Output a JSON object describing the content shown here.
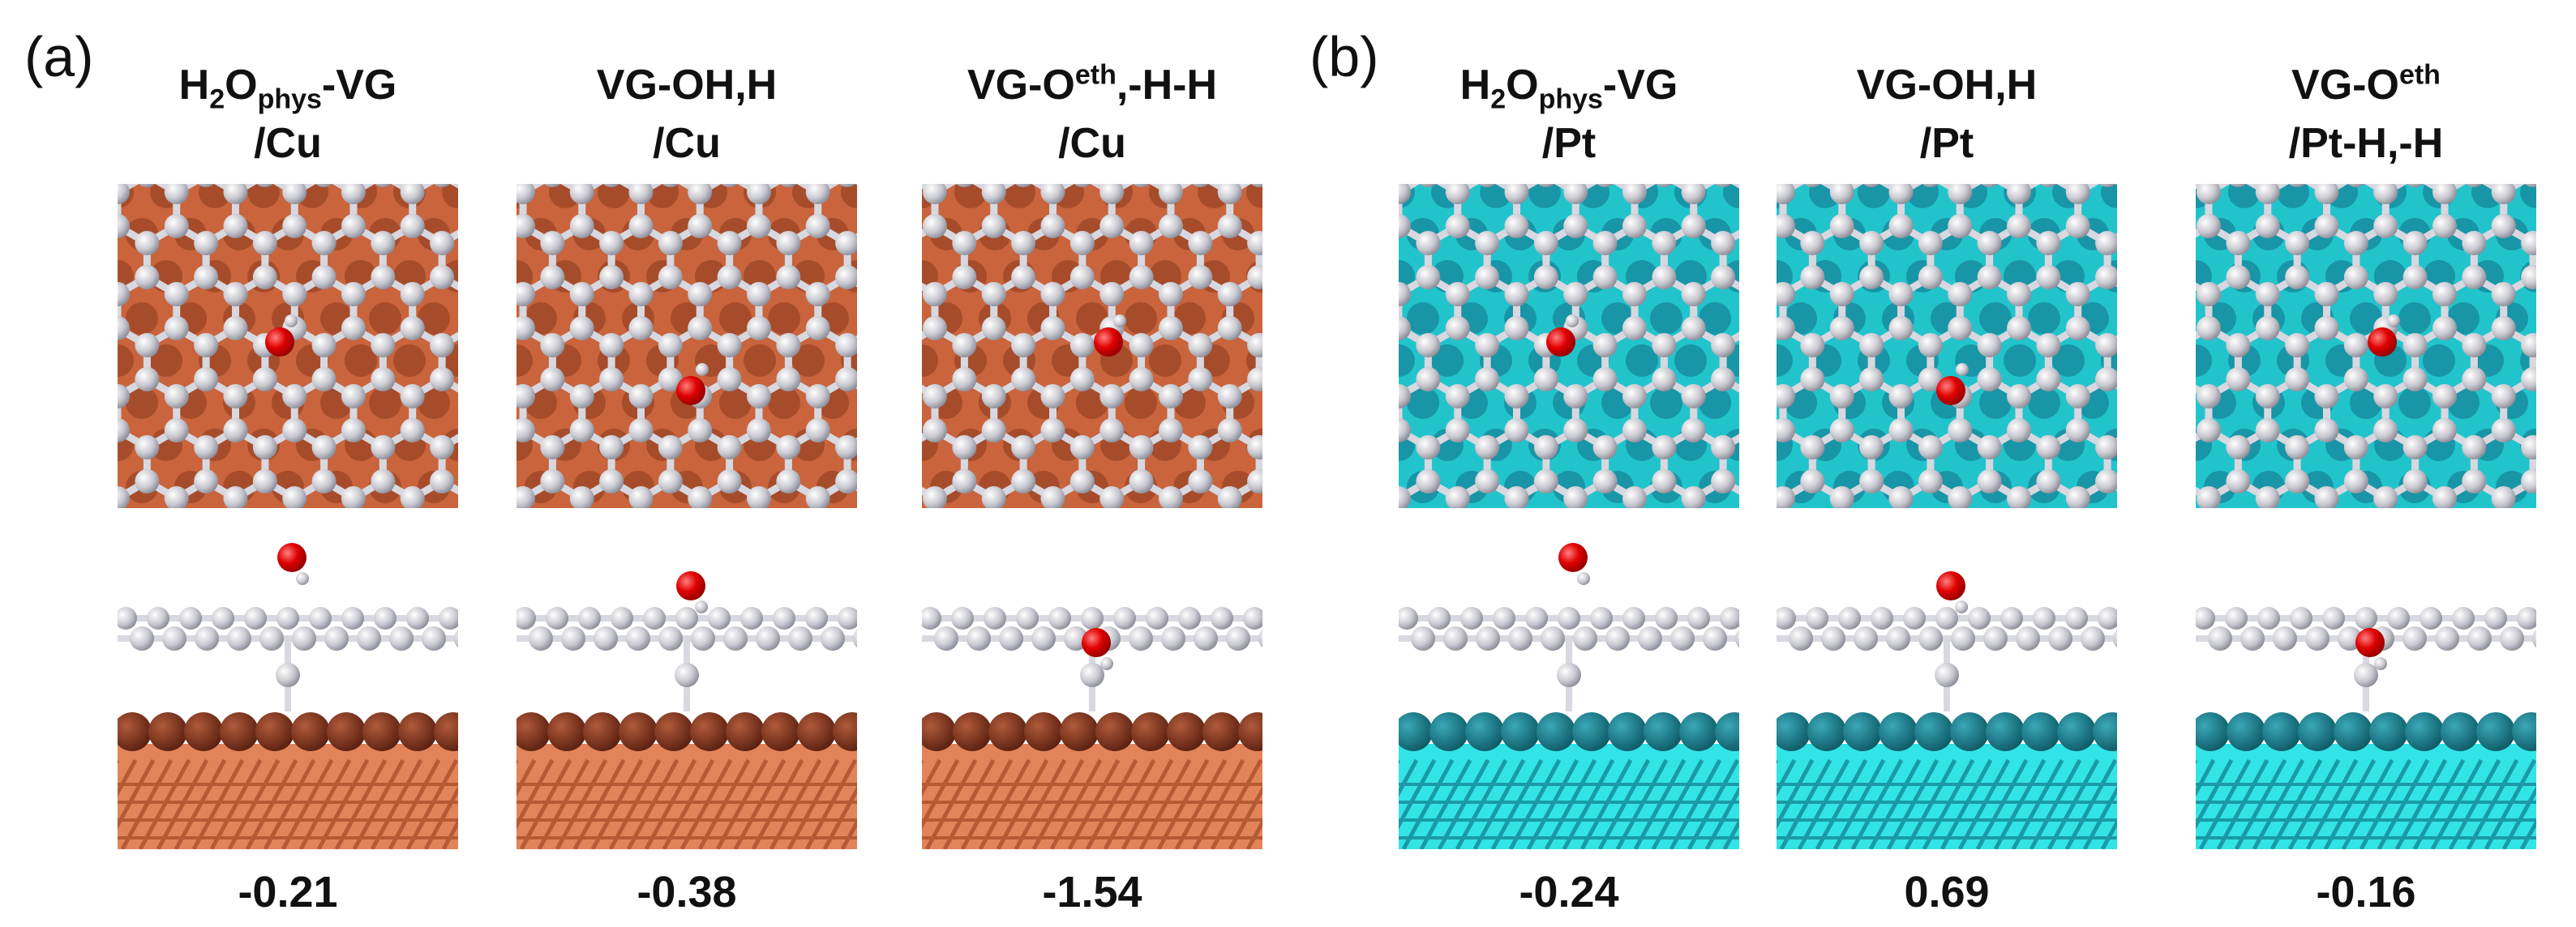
{
  "panels": [
    {
      "label": "(a)",
      "columns": [
        {
          "title_lines": [
            [
              {
                "text": "H"
              },
              {
                "text": "2",
                "sub": true
              },
              {
                "text": "O"
              },
              {
                "text": "phys",
                "sub": true
              },
              {
                "text": "-VG"
              }
            ],
            [
              {
                "text": "/Cu"
              }
            ]
          ],
          "energy": -0.21
        },
        {
          "title_lines": [
            [
              {
                "text": "VG-OH,H"
              }
            ],
            [
              {
                "text": "/Cu"
              }
            ]
          ],
          "energy": -0.38
        },
        {
          "title_lines": [
            [
              {
                "text": "VG-O"
              },
              {
                "text": "eth",
                "sup": true
              },
              {
                "text": ",-H-H"
              }
            ],
            [
              {
                "text": "/Cu"
              }
            ]
          ],
          "energy": -1.54
        }
      ]
    },
    {
      "label": "(b)",
      "columns": [
        {
          "title_lines": [
            [
              {
                "text": "H"
              },
              {
                "text": "2",
                "sub": true
              },
              {
                "text": "O"
              },
              {
                "text": "phys",
                "sub": true
              },
              {
                "text": "-VG"
              }
            ],
            [
              {
                "text": "/Pt"
              }
            ]
          ],
          "energy": -0.24
        },
        {
          "title_lines": [
            [
              {
                "text": "VG-OH,H"
              }
            ],
            [
              {
                "text": "/Pt"
              }
            ]
          ],
          "energy": 0.69
        },
        {
          "title_lines": [
            [
              {
                "text": "VG-O"
              },
              {
                "text": "eth",
                "sup": true
              }
            ],
            [
              {
                "text": "/Pt-H,-H"
              }
            ]
          ],
          "energy": -0.16
        }
      ]
    }
  ]
}
